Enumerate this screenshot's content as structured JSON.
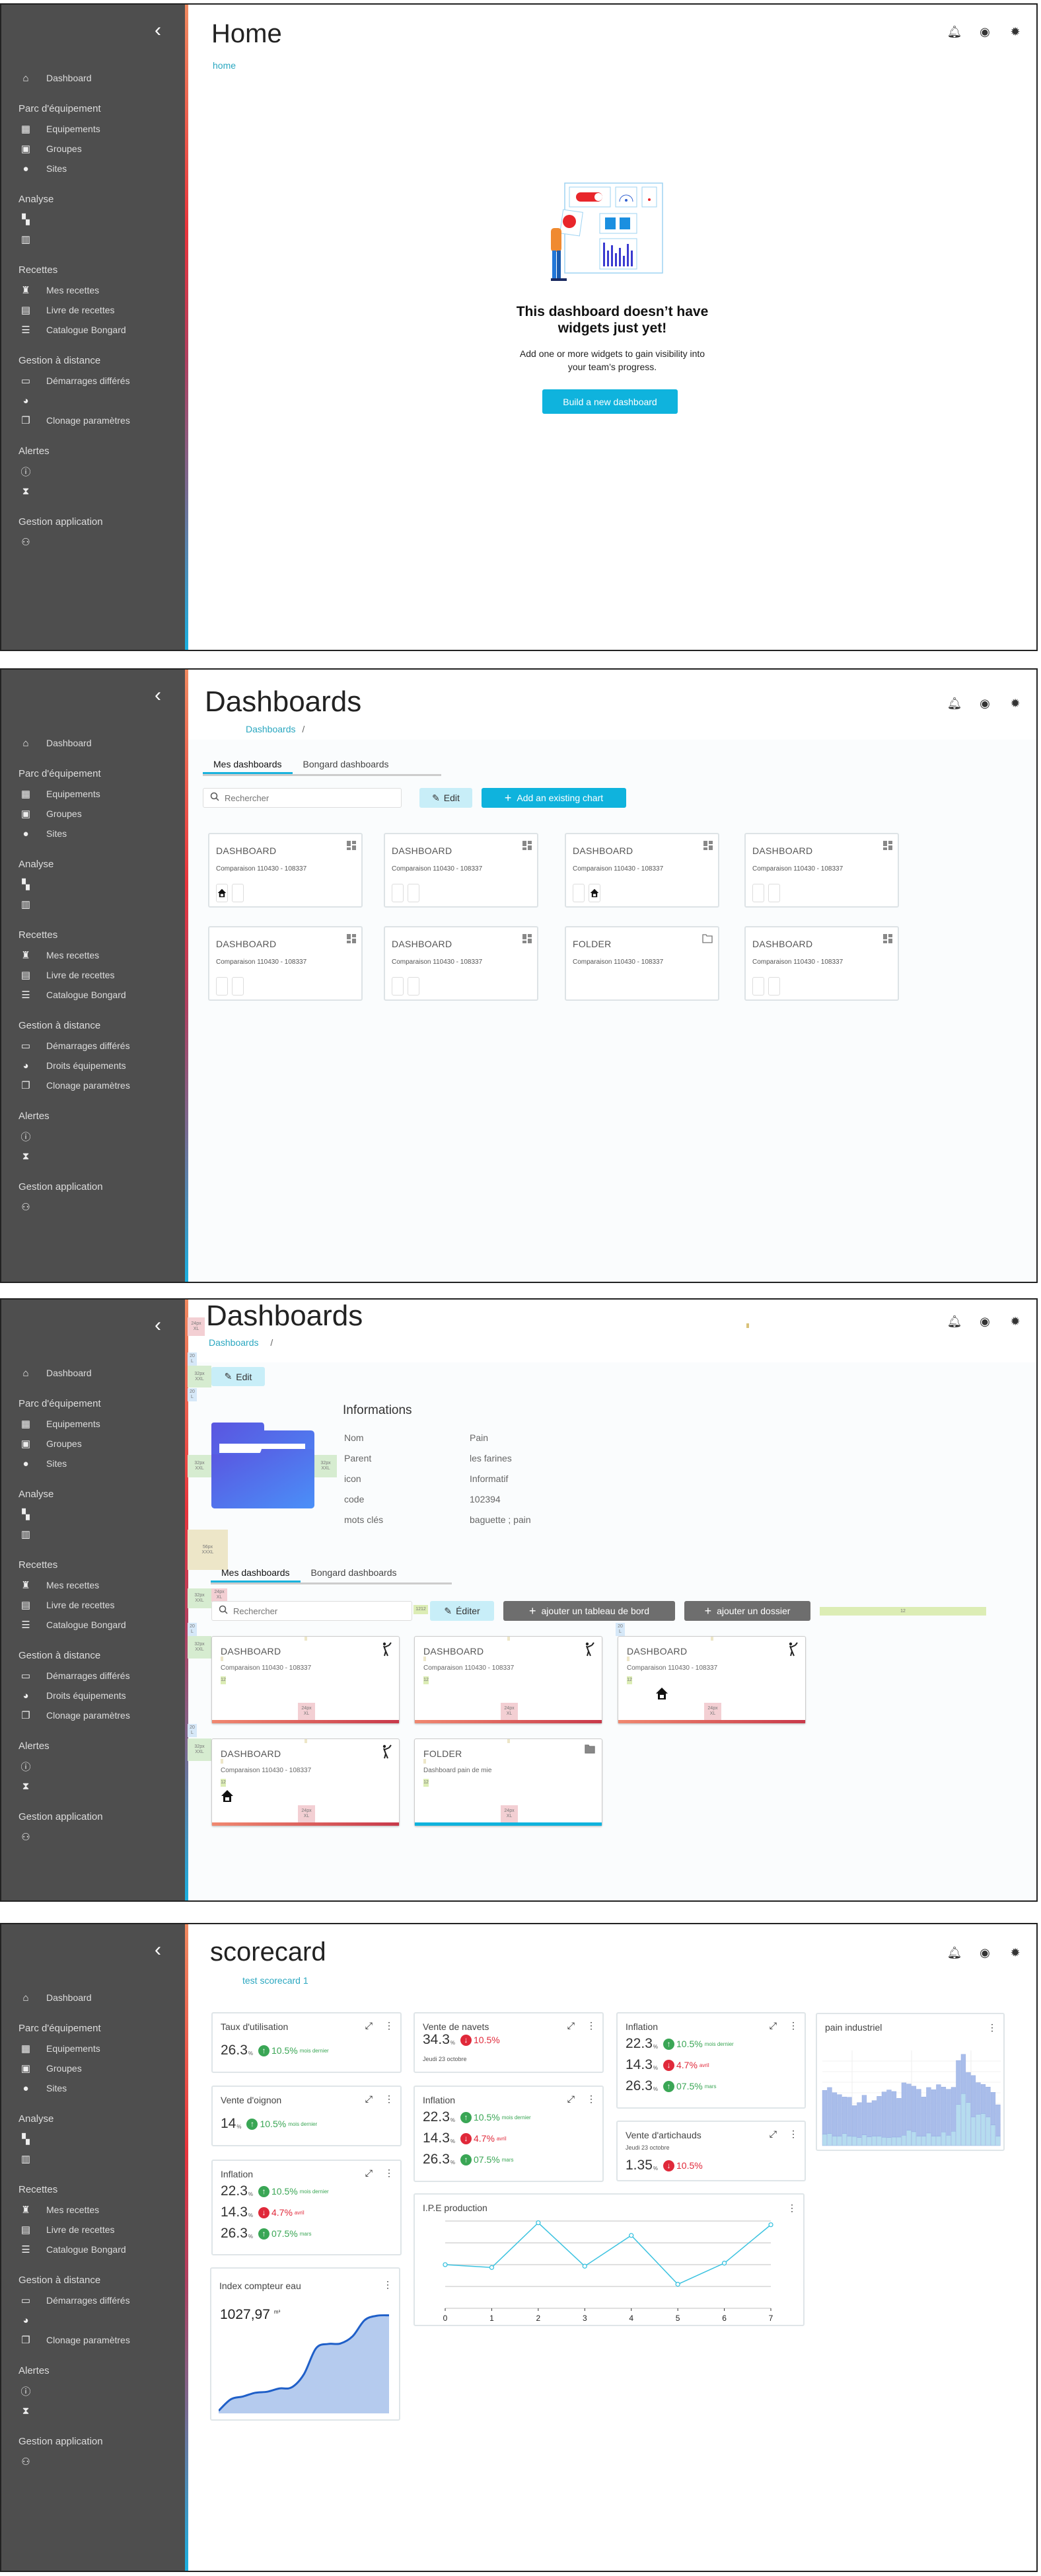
{
  "colors": {
    "accent": "#0fb3dd",
    "sidebar": "#4e4e4e",
    "up": "#3aa655",
    "down": "#e0293a",
    "dash_bar": "#d9534f",
    "folder_bar": "#0fb3dd"
  },
  "sidebar": {
    "collapse_icon": "chevron-left-icon",
    "sections": [
      {
        "title": "",
        "items": [
          {
            "key": "dashboard",
            "icon": "home-icon",
            "label": "Dashboard"
          }
        ]
      },
      {
        "title": "Parc d'équipement",
        "items": [
          {
            "key": "equipements",
            "icon": "grid-icon",
            "label": "Equipements"
          },
          {
            "key": "groupes",
            "icon": "group-icon",
            "label": "Groupes"
          },
          {
            "key": "sites",
            "icon": "location-pin-icon",
            "label": "Sites"
          }
        ]
      },
      {
        "title": "Analyse",
        "items": [
          {
            "key": "analyse-dashboards",
            "icon": "dashboard-icon",
            "label": ""
          },
          {
            "key": "analyse-charts",
            "icon": "bar-chart-icon",
            "label": ""
          }
        ]
      },
      {
        "title": "Recettes",
        "items": [
          {
            "key": "mes-recettes",
            "icon": "chef-hat-icon",
            "label": "Mes recettes"
          },
          {
            "key": "livre",
            "icon": "book-icon",
            "label": "Livre de recettes"
          },
          {
            "key": "catalogue",
            "icon": "list-icon",
            "label": "Catalogue Bongard"
          }
        ]
      },
      {
        "title": "Gestion à distance",
        "items": [
          {
            "key": "demarrages",
            "icon": "calendar-icon",
            "label": "Démarrages différés"
          },
          {
            "key": "droits",
            "icon": "palette-icon",
            "label": "Droits équipements"
          },
          {
            "key": "clonage",
            "icon": "copy-icon",
            "label": "Clonage paramètres"
          }
        ]
      },
      {
        "title": "Alertes",
        "items": [
          {
            "key": "alertes",
            "icon": "alert-circle-icon",
            "label": ""
          },
          {
            "key": "historique",
            "icon": "hourglass-icon",
            "label": ""
          }
        ]
      },
      {
        "title": "Gestion application",
        "items": [
          {
            "key": "users",
            "icon": "users-icon",
            "label": ""
          }
        ]
      }
    ]
  },
  "header_icons": [
    "bell-icon",
    "account-icon",
    "settings-icon"
  ],
  "screen1": {
    "title": "Home",
    "breadcrumb": "home",
    "hidden_sidebar_labels": [
      "droits"
    ],
    "empty": {
      "heading_line1": "This dashboard doesn’t have",
      "heading_line2": "widgets just yet!",
      "text_line1": "Add one or more widgets to gain visibility into",
      "text_line2": "your team’s progress.",
      "button": "Build a new dashboard"
    }
  },
  "screen2": {
    "title": "Dashboards",
    "breadcrumb": "Dashboards",
    "breadcrumb_sep": "/",
    "hidden_sidebar_labels": [],
    "tabs": [
      {
        "label": "Mes dashboards",
        "active": true
      },
      {
        "label": "Bongard dashboards",
        "active": false
      }
    ],
    "search_placeholder": "Rechercher",
    "edit": "Edit",
    "add": "Add an existing chart",
    "cards": [
      {
        "type": "DASHBOARD",
        "subtitle": "Comparaison 110430 - 108337",
        "icon": "dashboard-icon",
        "home": 1
      },
      {
        "type": "DASHBOARD",
        "subtitle": "Comparaison 110430 - 108337",
        "icon": "dashboard-icon",
        "home": 0
      },
      {
        "type": "DASHBOARD",
        "subtitle": "Comparaison 110430 - 108337",
        "icon": "dashboard-icon",
        "home": 2
      },
      {
        "type": "DASHBOARD",
        "subtitle": "Comparaison 110430 - 108337",
        "icon": "dashboard-icon",
        "home": 0
      },
      {
        "type": "DASHBOARD",
        "subtitle": "Comparaison 110430 - 108337",
        "icon": "dashboard-icon",
        "home": 0
      },
      {
        "type": "DASHBOARD",
        "subtitle": "Comparaison 110430 - 108337",
        "icon": "dashboard-icon",
        "home": 0
      },
      {
        "type": "FOLDER",
        "subtitle": "Comparaison 110430 - 108337",
        "icon": "folder-icon",
        "home": -1
      },
      {
        "type": "DASHBOARD",
        "subtitle": "Comparaison 110430 - 108337",
        "icon": "dashboard-icon",
        "home": 0
      }
    ]
  },
  "screen3": {
    "title": "Dashboards",
    "breadcrumb": "Dashboards",
    "breadcrumb_sep": "/",
    "hidden_sidebar_labels": [],
    "edit": "Edit",
    "info": {
      "title": "Informations",
      "rows": [
        {
          "label": "Nom",
          "value": "Pain"
        },
        {
          "label": "Parent",
          "value": "les farines"
        },
        {
          "label": "icon",
          "value": "Informatif"
        },
        {
          "label": "code",
          "value": "102394"
        },
        {
          "label": "mots clés",
          "value": "baguette ; pain"
        }
      ]
    },
    "tabs": [
      {
        "label": "Mes dashboards",
        "active": true
      },
      {
        "label": "Bongard dashboards",
        "active": false
      }
    ],
    "search_placeholder": "Rechercher",
    "edit2": "Éditer",
    "add_dashboard": "ajouter un tableau de bord",
    "add_folder": "ajouter un dossier",
    "cards": [
      {
        "type": "DASHBOARD",
        "subtitle": "Comparaison 110430 - 108337",
        "icon": "baker-icon",
        "home": false,
        "kind": "dashboard"
      },
      {
        "type": "DASHBOARD",
        "subtitle": "Comparaison 110430 - 108337",
        "icon": "baker-icon",
        "home": false,
        "kind": "dashboard"
      },
      {
        "type": "DASHBOARD",
        "subtitle": "Comparaison 110430 - 108337",
        "icon": "baker-icon",
        "home": true,
        "kind": "dashboard"
      },
      {
        "type": "DASHBOARD",
        "subtitle": "Comparaison 110430 - 108337",
        "icon": "baker-icon",
        "home": true,
        "kind": "dashboard"
      },
      {
        "type": "FOLDER",
        "subtitle": "Dashboard pain de mie",
        "icon": "folder-icon",
        "home": false,
        "kind": "folder"
      }
    ],
    "spec": {
      "s8": "8",
      "s12": "12",
      "s20": "20",
      "l": "L",
      "s24": "24px",
      "xl": "XL",
      "s32": "32px",
      "xxl": "XXL",
      "s56": "56px",
      "xxxl": "XXXL"
    }
  },
  "screen4": {
    "title": "scorecard",
    "breadcrumb": "test scorecard 1",
    "hidden_sidebar_labels": [
      "droits"
    ],
    "widgets": [
      {
        "title": "Taux d'utilisation",
        "expand": true,
        "rows": [
          {
            "value": "26.3",
            "unit": "%",
            "dir": "up",
            "pct": "10.5%",
            "label": "mois dernier"
          }
        ]
      },
      {
        "title": "Vente d'oignon",
        "expand": true,
        "rows": [
          {
            "value": "14",
            "unit": "%",
            "dir": "up",
            "pct": "10.5%",
            "label": "mois dernier"
          }
        ]
      },
      {
        "title": "Inflation",
        "expand": true,
        "rows": [
          {
            "value": "22.3",
            "unit": "%",
            "dir": "up",
            "pct": "10.5%",
            "label": "mois dernier"
          },
          {
            "value": "14.3",
            "unit": "%",
            "dir": "down",
            "pct": "4.7%",
            "label": "avril"
          },
          {
            "value": "26.3",
            "unit": "%",
            "dir": "up",
            "pct": "07.5%",
            "label": "mars"
          }
        ]
      },
      {
        "title": "Vente de navets",
        "expand": true,
        "date_below": "Jeudi 23 octobre",
        "rows": [
          {
            "value": "34.3",
            "unit": "%",
            "dir": "down",
            "pct": "10.5%",
            "label": ""
          }
        ]
      },
      {
        "title": "Inflation",
        "expand": true,
        "rows": [
          {
            "value": "22.3",
            "unit": "%",
            "dir": "up",
            "pct": "10.5%",
            "label": "mois dernier"
          },
          {
            "value": "14.3",
            "unit": "%",
            "dir": "down",
            "pct": "4.7%",
            "label": "avril"
          },
          {
            "value": "26.3",
            "unit": "%",
            "dir": "up",
            "pct": "07.5%",
            "label": "mars"
          }
        ]
      },
      {
        "title": "Inflation",
        "expand": true,
        "rows": [
          {
            "value": "22.3",
            "unit": "%",
            "dir": "up",
            "pct": "10.5%",
            "label": "mois dernier"
          },
          {
            "value": "14.3",
            "unit": "%",
            "dir": "down",
            "pct": "4.7%",
            "label": "avril"
          },
          {
            "value": "26.3",
            "unit": "%",
            "dir": "up",
            "pct": "07.5%",
            "label": "mars"
          }
        ]
      },
      {
        "title": "Vente d'artichauds",
        "expand": true,
        "date_top": "Jeudi 23 octobre",
        "rows": [
          {
            "value": "1.35",
            "unit": "%",
            "dir": "down",
            "pct": "10.5%",
            "label": ""
          }
        ]
      }
    ],
    "index_widget": {
      "title": "Index compteur eau",
      "value": "1027,97",
      "unit": "m³"
    },
    "ipe_widget": {
      "title": "I.P.E production"
    },
    "pain_widget": {
      "title": "pain industriel"
    }
  },
  "chart_data": [
    {
      "type": "line",
      "title": "I.P.E production",
      "x": [
        0,
        1,
        2,
        3,
        4,
        5,
        6,
        7
      ],
      "y": [
        2.0,
        1.87,
        3.92,
        1.93,
        3.34,
        1.1,
        2.07,
        3.83
      ],
      "xlim": [
        0,
        7
      ],
      "ylim": [
        0,
        4
      ],
      "grid": true,
      "color": "#3cc3e0"
    },
    {
      "type": "area",
      "title": "Index compteur eau",
      "values": [
        12,
        65,
        78,
        95,
        100,
        115,
        120,
        180,
        300,
        320,
        322,
        355,
        430,
        450,
        452
      ],
      "ylim": [
        0,
        460
      ],
      "color": "#1f5fc8",
      "fill": "#b5cbee"
    },
    {
      "type": "bar",
      "stacked": true,
      "title": "pain industriel",
      "ylim": [
        0,
        430
      ],
      "grid": true,
      "series": [
        {
          "color": "#b6dcef",
          "values": [
            52,
            55,
            43,
            43,
            55,
            43,
            42,
            37,
            49,
            40,
            43,
            43,
            38,
            37,
            39,
            39,
            47,
            70,
            63,
            43,
            43,
            57,
            43,
            43,
            62,
            47,
            65,
            186,
            235,
            195,
            130,
            142,
            145,
            130,
            94,
            43
          ]
        },
        {
          "color": "#a9bdea",
          "values": [
            198,
            208,
            197,
            188,
            165,
            176,
            139,
            158,
            179,
            154,
            161,
            180,
            205,
            215,
            206,
            175,
            237,
            209,
            206,
            212,
            177,
            206,
            210,
            233,
            203,
            208,
            199,
            199,
            178,
            136,
            187,
            143,
            132,
            135,
            147,
            142
          ]
        }
      ]
    }
  ]
}
